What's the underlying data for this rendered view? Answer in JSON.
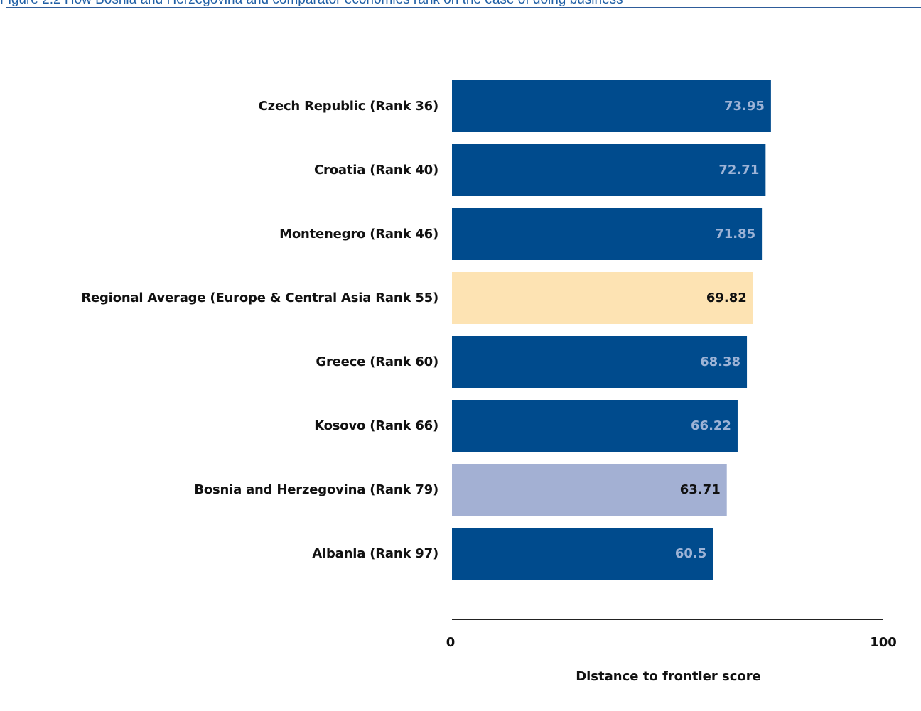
{
  "figure": {
    "title": "Figure 2.2 How Bosnia and Herzegovina and comparator economies rank on the ease of doing business"
  },
  "chart_data": {
    "type": "bar",
    "orientation": "horizontal",
    "title": "",
    "xlabel": "Distance to frontier score",
    "ylabel": "",
    "xlim": [
      0,
      100
    ],
    "x_ticks": [
      "0",
      "100"
    ],
    "grid": false,
    "categories": [
      "Czech Republic (Rank  36)",
      "Croatia (Rank  40)",
      "Montenegro (Rank  46)",
      "Regional Average (Europe & Central Asia Rank 55)",
      "Greece (Rank  60)",
      "Kosovo (Rank  66)",
      "Bosnia and Herzegovina (Rank 79)",
      "Albania (Rank  97)"
    ],
    "values": [
      73.95,
      72.71,
      71.85,
      69.82,
      68.38,
      66.22,
      63.71,
      60.5
    ],
    "value_labels": [
      "73.95",
      "72.71",
      "71.85",
      "69.82",
      "68.38",
      "66.22",
      "63.71",
      "60.5"
    ],
    "bar_colors": [
      "#004b8d",
      "#004b8d",
      "#004b8d",
      "#fde3b3",
      "#004b8d",
      "#004b8d",
      "#a3b0d3",
      "#004b8d"
    ],
    "label_colors": [
      "#9db3d6",
      "#9db3d6",
      "#9db3d6",
      "#111111",
      "#9db3d6",
      "#9db3d6",
      "#111111",
      "#9db3d6"
    ]
  }
}
